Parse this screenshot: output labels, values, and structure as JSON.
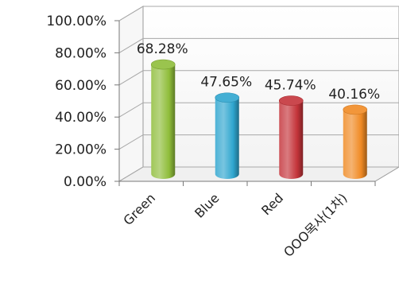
{
  "chart_data": {
    "type": "bar",
    "categories": [
      "Green",
      "Blue",
      "Red",
      "OOO목사(1차)"
    ],
    "values": [
      68.28,
      47.65,
      45.74,
      40.16
    ],
    "data_labels": [
      "68.28%",
      "47.65%",
      "45.74%",
      "40.16%"
    ],
    "y_ticks": [
      "0.00%",
      "20.00%",
      "40.00%",
      "60.00%",
      "80.00%",
      "100.00%"
    ],
    "ylim": [
      0,
      100
    ],
    "unit": "%",
    "grid": true,
    "style": "3d-cylinder",
    "colors": [
      "#8fbd3a",
      "#2fa6cf",
      "#c4343a",
      "#f08a24"
    ]
  }
}
